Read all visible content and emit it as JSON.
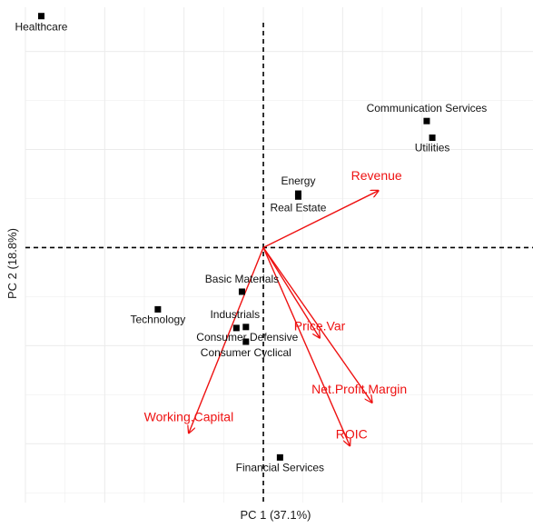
{
  "chart_data": {
    "type": "scatter",
    "subtype": "pca-biplot",
    "title": "",
    "xlabel": "PC 1 (37.1%)",
    "ylabel": "PC 2 (18.8%)",
    "xlim": [
      -3.0,
      3.4
    ],
    "ylim": [
      -2.6,
      2.45
    ],
    "grid": true,
    "legend": "none",
    "zero_lines": "dashed",
    "colors": {
      "points": "#000000",
      "arrows": "#ee1111",
      "grid": "#ebebeb"
    },
    "points": [
      {
        "label": "Healthcare",
        "x": -2.8,
        "y": 2.36
      },
      {
        "label": "Communication Services",
        "x": 2.06,
        "y": 1.29
      },
      {
        "label": "Utilities",
        "x": 2.13,
        "y": 1.12
      },
      {
        "label": "Energy",
        "x": 0.44,
        "y": 0.55
      },
      {
        "label": "Real Estate",
        "x": 0.44,
        "y": 0.52
      },
      {
        "label": "Basic Materials",
        "x": -0.27,
        "y": -0.45
      },
      {
        "label": "Technology",
        "x": -1.33,
        "y": -0.63
      },
      {
        "label": "Industrials",
        "x": -0.22,
        "y": -0.81
      },
      {
        "label": "Consumer Defensive",
        "x": -0.34,
        "y": -0.82
      },
      {
        "label": "Consumer Cyclical",
        "x": -0.22,
        "y": -0.96
      },
      {
        "label": "Financial Services",
        "x": 0.21,
        "y": -2.14
      }
    ],
    "loadings": [
      {
        "label": "Revenue",
        "x": 1.45,
        "y": 0.58
      },
      {
        "label": "Price.Var",
        "x": 0.71,
        "y": -0.92
      },
      {
        "label": "Net.Profit.Margin",
        "x": 1.37,
        "y": -1.58
      },
      {
        "label": "ROIC",
        "x": 1.09,
        "y": -2.02
      },
      {
        "label": "Working.Capital",
        "x": -0.94,
        "y": -1.89
      }
    ]
  }
}
